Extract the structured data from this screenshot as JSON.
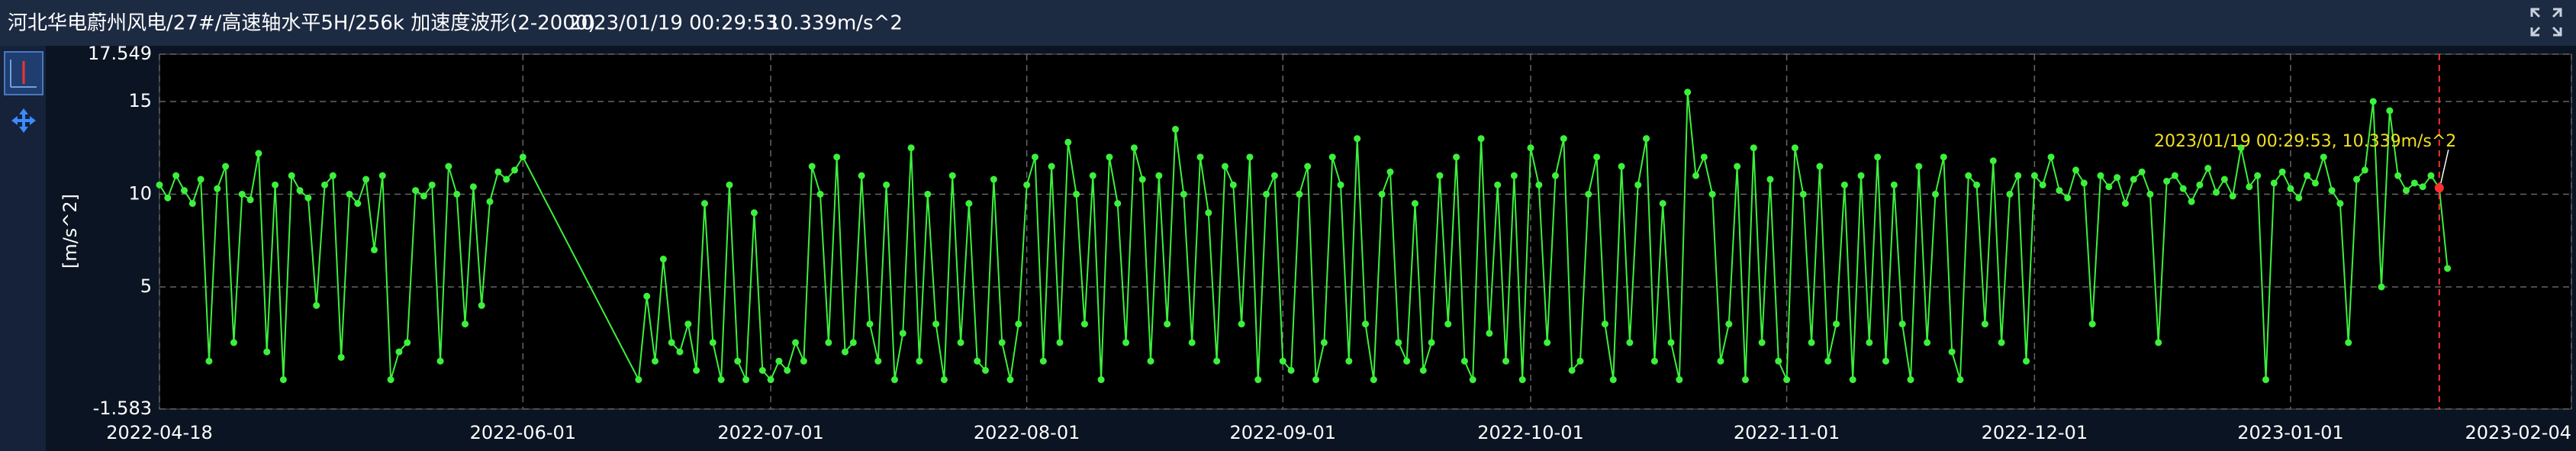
{
  "header": {
    "title": "河北华电蔚州风电/27#/高速轴水平5H/256k 加速度波形(2-2000)",
    "time": "2023/01/19 00:29:53",
    "value": "10.339m/s^2"
  },
  "chart_data": {
    "type": "line",
    "y_label": "[m/s^2]",
    "color": "#3cf03c",
    "grid": true,
    "xlim": [
      "2022-04-18",
      "2023-02-04"
    ],
    "xticks": [
      "2022-04-18",
      "2022-06-01",
      "2022-07-01",
      "2022-08-01",
      "2022-09-01",
      "2022-10-01",
      "2022-11-01",
      "2022-12-01",
      "2023-01-01",
      "2023-02-04"
    ],
    "ylim": [
      -1.583,
      17.549
    ],
    "yticks": [
      -1.583,
      5,
      10,
      15,
      17.549
    ],
    "annotation": {
      "text": "2023/01/19 00:29:53, 10.339m/s^2",
      "x": "2023-01-19",
      "y": 10.339,
      "color": "#ff3030"
    },
    "x": [
      "2022-04-18",
      "2022-04-19",
      "2022-04-20",
      "2022-04-21",
      "2022-04-22",
      "2022-04-23",
      "2022-04-24",
      "2022-04-25",
      "2022-04-26",
      "2022-04-27",
      "2022-04-28",
      "2022-04-29",
      "2022-04-30",
      "2022-05-01",
      "2022-05-02",
      "2022-05-03",
      "2022-05-04",
      "2022-05-05",
      "2022-05-06",
      "2022-05-07",
      "2022-05-08",
      "2022-05-09",
      "2022-05-10",
      "2022-05-11",
      "2022-05-12",
      "2022-05-13",
      "2022-05-14",
      "2022-05-15",
      "2022-05-16",
      "2022-05-17",
      "2022-05-18",
      "2022-05-19",
      "2022-05-20",
      "2022-05-21",
      "2022-05-22",
      "2022-05-23",
      "2022-05-24",
      "2022-05-25",
      "2022-05-26",
      "2022-05-27",
      "2022-05-28",
      "2022-05-29",
      "2022-05-30",
      "2022-05-31",
      "2022-06-01",
      "2022-06-15",
      "2022-06-16",
      "2022-06-17",
      "2022-06-18",
      "2022-06-19",
      "2022-06-20",
      "2022-06-21",
      "2022-06-22",
      "2022-06-23",
      "2022-06-24",
      "2022-06-25",
      "2022-06-26",
      "2022-06-27",
      "2022-06-28",
      "2022-06-29",
      "2022-06-30",
      "2022-07-01",
      "2022-07-02",
      "2022-07-03",
      "2022-07-04",
      "2022-07-05",
      "2022-07-06",
      "2022-07-07",
      "2022-07-08",
      "2022-07-09",
      "2022-07-10",
      "2022-07-11",
      "2022-07-12",
      "2022-07-13",
      "2022-07-14",
      "2022-07-15",
      "2022-07-16",
      "2022-07-17",
      "2022-07-18",
      "2022-07-19",
      "2022-07-20",
      "2022-07-21",
      "2022-07-22",
      "2022-07-23",
      "2022-07-24",
      "2022-07-25",
      "2022-07-26",
      "2022-07-27",
      "2022-07-28",
      "2022-07-29",
      "2022-07-30",
      "2022-07-31",
      "2022-08-01",
      "2022-08-02",
      "2022-08-03",
      "2022-08-04",
      "2022-08-05",
      "2022-08-06",
      "2022-08-07",
      "2022-08-08",
      "2022-08-09",
      "2022-08-10",
      "2022-08-11",
      "2022-08-12",
      "2022-08-13",
      "2022-08-14",
      "2022-08-15",
      "2022-08-16",
      "2022-08-17",
      "2022-08-18",
      "2022-08-19",
      "2022-08-20",
      "2022-08-21",
      "2022-08-22",
      "2022-08-23",
      "2022-08-24",
      "2022-08-25",
      "2022-08-26",
      "2022-08-27",
      "2022-08-28",
      "2022-08-29",
      "2022-08-30",
      "2022-08-31",
      "2022-09-01",
      "2022-09-02",
      "2022-09-03",
      "2022-09-04",
      "2022-09-05",
      "2022-09-06",
      "2022-09-07",
      "2022-09-08",
      "2022-09-09",
      "2022-09-10",
      "2022-09-11",
      "2022-09-12",
      "2022-09-13",
      "2022-09-14",
      "2022-09-15",
      "2022-09-16",
      "2022-09-17",
      "2022-09-18",
      "2022-09-19",
      "2022-09-20",
      "2022-09-21",
      "2022-09-22",
      "2022-09-23",
      "2022-09-24",
      "2022-09-25",
      "2022-09-26",
      "2022-09-27",
      "2022-09-28",
      "2022-09-29",
      "2022-09-30",
      "2022-10-01",
      "2022-10-02",
      "2022-10-03",
      "2022-10-04",
      "2022-10-05",
      "2022-10-06",
      "2022-10-07",
      "2022-10-08",
      "2022-10-09",
      "2022-10-10",
      "2022-10-11",
      "2022-10-12",
      "2022-10-13",
      "2022-10-14",
      "2022-10-15",
      "2022-10-16",
      "2022-10-17",
      "2022-10-18",
      "2022-10-19",
      "2022-10-20",
      "2022-10-21",
      "2022-10-22",
      "2022-10-23",
      "2022-10-24",
      "2022-10-25",
      "2022-10-26",
      "2022-10-27",
      "2022-10-28",
      "2022-10-29",
      "2022-10-30",
      "2022-10-31",
      "2022-11-01",
      "2022-11-02",
      "2022-11-03",
      "2022-11-04",
      "2022-11-05",
      "2022-11-06",
      "2022-11-07",
      "2022-11-08",
      "2022-11-09",
      "2022-11-10",
      "2022-11-11",
      "2022-11-12",
      "2022-11-13",
      "2022-11-14",
      "2022-11-15",
      "2022-11-16",
      "2022-11-17",
      "2022-11-18",
      "2022-11-19",
      "2022-11-20",
      "2022-11-21",
      "2022-11-22",
      "2022-11-23",
      "2022-11-24",
      "2022-11-25",
      "2022-11-26",
      "2022-11-27",
      "2022-11-28",
      "2022-11-29",
      "2022-11-30",
      "2022-12-01",
      "2022-12-02",
      "2022-12-03",
      "2022-12-04",
      "2022-12-05",
      "2022-12-06",
      "2022-12-07",
      "2022-12-08",
      "2022-12-09",
      "2022-12-10",
      "2022-12-11",
      "2022-12-12",
      "2022-12-13",
      "2022-12-14",
      "2022-12-15",
      "2022-12-16",
      "2022-12-17",
      "2022-12-18",
      "2022-12-19",
      "2022-12-20",
      "2022-12-21",
      "2022-12-22",
      "2022-12-23",
      "2022-12-24",
      "2022-12-25",
      "2022-12-26",
      "2022-12-27",
      "2022-12-28",
      "2022-12-29",
      "2022-12-30",
      "2022-12-31",
      "2023-01-01",
      "2023-01-02",
      "2023-01-03",
      "2023-01-04",
      "2023-01-05",
      "2023-01-06",
      "2023-01-07",
      "2023-01-08",
      "2023-01-09",
      "2023-01-10",
      "2023-01-11",
      "2023-01-12",
      "2023-01-13",
      "2023-01-14",
      "2023-01-15",
      "2023-01-16",
      "2023-01-17",
      "2023-01-18",
      "2023-01-19",
      "2023-01-20"
    ],
    "values": [
      10.5,
      9.8,
      11,
      10.2,
      9.5,
      10.8,
      1,
      10.3,
      11.5,
      2,
      10,
      9.7,
      12.2,
      1.5,
      10.5,
      0,
      11,
      10.2,
      9.8,
      4,
      10.5,
      11,
      1.2,
      10,
      9.5,
      10.8,
      7,
      11,
      0,
      1.5,
      2,
      10.2,
      9.9,
      10.5,
      1,
      11.5,
      10,
      3,
      10.4,
      4,
      9.6,
      11.2,
      10.8,
      11.3,
      12,
      0,
      4.5,
      1,
      6.5,
      2,
      1.5,
      3,
      0.5,
      9.5,
      2,
      0,
      10.5,
      1,
      0,
      9,
      0.5,
      0,
      1,
      0.5,
      2,
      1,
      11.5,
      10,
      2,
      12,
      1.5,
      2,
      11,
      3,
      1,
      10.5,
      0,
      2.5,
      12.5,
      1,
      10,
      3,
      0,
      11,
      2,
      9.5,
      1,
      0.5,
      10.8,
      2,
      0,
      3,
      10.5,
      12,
      1,
      11.5,
      2,
      12.8,
      10,
      3,
      11,
      0,
      12,
      9.5,
      2,
      12.5,
      10.8,
      1,
      11,
      3,
      13.5,
      10,
      2,
      12,
      9,
      1,
      11.5,
      10.5,
      3,
      12,
      0,
      10,
      11,
      1,
      0.5,
      10,
      11.5,
      0,
      2,
      12,
      10.5,
      1,
      13,
      3,
      0,
      10,
      11.2,
      2,
      1,
      9.5,
      0.5,
      2,
      11,
      3,
      12,
      1,
      0,
      13,
      2.5,
      10.5,
      1,
      11,
      0,
      12.5,
      10.5,
      2,
      11,
      13,
      0.5,
      1,
      10,
      12,
      3,
      0,
      11.5,
      2,
      10.5,
      13,
      1,
      9.5,
      2,
      0,
      15.5,
      11,
      12,
      10,
      1,
      3,
      11.5,
      0,
      12.5,
      2,
      10.8,
      1,
      0,
      12.5,
      10,
      2,
      11.5,
      1,
      3,
      10.5,
      0,
      11,
      2,
      12,
      1,
      10.5,
      3,
      0,
      11.5,
      2,
      10,
      12,
      1.5,
      0,
      11,
      10.5,
      3,
      11.8,
      2,
      10,
      11,
      1,
      11,
      10.5,
      12,
      10.2,
      9.8,
      11.3,
      10.6,
      3,
      11,
      10.4,
      10.9,
      9.5,
      10.8,
      11.2,
      10,
      2,
      10.7,
      11,
      10.3,
      9.6,
      10.5,
      11.4,
      10.1,
      10.8,
      9.9,
      12.5,
      10.4,
      11,
      0,
      10.6,
      11.2,
      10.3,
      9.8,
      11,
      10.6,
      12,
      10.2,
      9.5,
      2,
      10.8,
      11.3,
      15,
      5,
      14.5,
      11,
      10.2,
      10.6,
      10.4,
      11,
      10.339,
      6
    ]
  }
}
